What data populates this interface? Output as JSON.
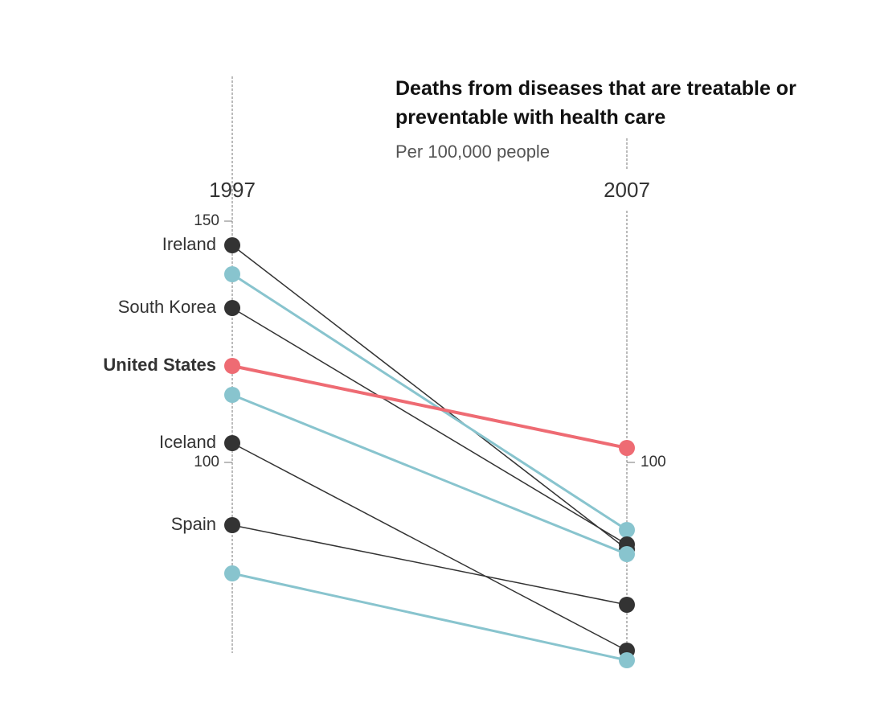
{
  "chart_data": {
    "type": "slope",
    "title": "Deaths from diseases that are treatable or preventable with health care",
    "subtitle": "Per 100,000 people",
    "categories": [
      "1997",
      "2007"
    ],
    "ylim": [
      58,
      150
    ],
    "yticks": [
      100,
      150
    ],
    "y2lim": [
      58,
      150
    ],
    "y2ticks": [
      100
    ],
    "series": [
      {
        "name": "Ireland",
        "color": "#333333",
        "values": [
          145,
          82
        ]
      },
      {
        "name": null,
        "color": "#88c4ce",
        "values": [
          139,
          86
        ]
      },
      {
        "name": "South Korea",
        "color": "#333333",
        "values": [
          132,
          83
        ]
      },
      {
        "name": null,
        "color": "#88c4ce",
        "values": [
          114,
          81
        ]
      },
      {
        "name": "Iceland",
        "color": "#333333",
        "values": [
          104,
          61
        ]
      },
      {
        "name": "Spain",
        "color": "#333333",
        "values": [
          87,
          70.5
        ]
      },
      {
        "name": null,
        "color": "#88c4ce",
        "values": [
          77,
          59
        ]
      },
      {
        "name": "United States",
        "color": "#ee6b73",
        "values": [
          120,
          103
        ]
      }
    ]
  }
}
